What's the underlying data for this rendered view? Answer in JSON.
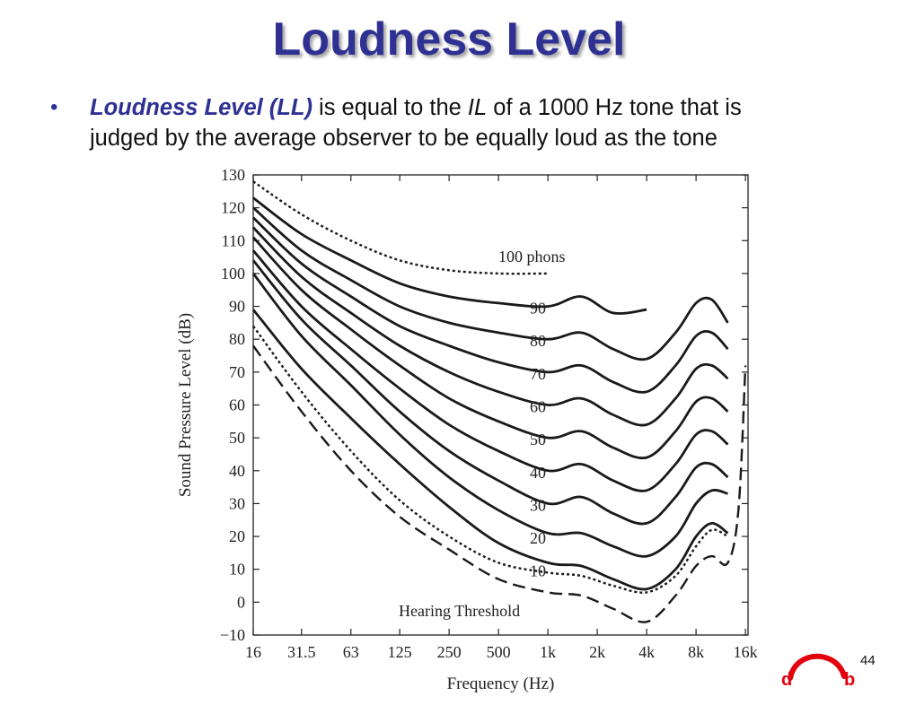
{
  "slide": {
    "title": "Loudness Level",
    "bullet": {
      "term": "Loudness Level (LL)",
      "text1": " is equal to the ",
      "il": "IL",
      "text2": " of a 1000 Hz tone that is",
      "line2": "judged by the average observer to be equally loud as the tone"
    },
    "page_number": "44",
    "logo_letters": [
      "d",
      "b"
    ],
    "colors": {
      "title": "#2e3192",
      "logo": "#e3000f"
    }
  },
  "chart_data": {
    "type": "line",
    "title": "",
    "xlabel": "Frequency (Hz)",
    "ylabel": "Sound Pressure Level (dB)",
    "xscale": "log",
    "xlim": [
      16,
      20000
    ],
    "ylim": [
      -10,
      130
    ],
    "x_ticks": [
      16,
      31.5,
      63,
      125,
      250,
      500,
      1000,
      2000,
      4000,
      8000,
      16000
    ],
    "x_tick_labels": [
      "16",
      "31.5",
      "63",
      "125",
      "250",
      "500",
      "1k",
      "2k",
      "4k",
      "8k",
      "16k"
    ],
    "y_ticks": [
      -10,
      0,
      10,
      20,
      30,
      40,
      50,
      60,
      70,
      80,
      90,
      100,
      110,
      120,
      130
    ],
    "y_tick_labels": [
      "−10",
      "0",
      "10",
      "20",
      "30",
      "40",
      "50",
      "60",
      "70",
      "80",
      "90",
      "100",
      "110",
      "120",
      "130"
    ],
    "grid": false,
    "series": [
      {
        "name": "100 phons",
        "label": "100 phons",
        "style": "dotted",
        "x": [
          16,
          31.5,
          63,
          125,
          250,
          500,
          1000
        ],
        "y": [
          128,
          118,
          110,
          104,
          101,
          100,
          100
        ]
      },
      {
        "name": "90",
        "label": "90",
        "style": "solid",
        "x": [
          16,
          31.5,
          63,
          125,
          250,
          500,
          1000,
          1600,
          2500,
          4000
        ],
        "y": [
          123,
          112,
          104,
          97,
          93,
          91,
          90,
          93,
          88,
          89
        ]
      },
      {
        "name": "80",
        "label": "80",
        "style": "solid",
        "x": [
          16,
          31.5,
          63,
          125,
          250,
          500,
          1000,
          1600,
          2500,
          4000,
          6000,
          8000,
          10000,
          12500
        ],
        "y": [
          120,
          107,
          98,
          90,
          85,
          82,
          80,
          82,
          77,
          74,
          82,
          91,
          92,
          85
        ]
      },
      {
        "name": "70",
        "label": "70",
        "style": "solid",
        "x": [
          16,
          31.5,
          63,
          125,
          250,
          500,
          1000,
          1600,
          2500,
          4000,
          6000,
          8000,
          10000,
          12500
        ],
        "y": [
          117,
          103,
          93,
          84,
          78,
          73,
          70,
          72,
          67,
          64,
          72,
          81,
          82,
          77
        ]
      },
      {
        "name": "60",
        "label": "60",
        "style": "solid",
        "x": [
          16,
          31.5,
          63,
          125,
          250,
          500,
          1000,
          1600,
          2500,
          4000,
          6000,
          8000,
          10000,
          12500
        ],
        "y": [
          114,
          99,
          88,
          78,
          70,
          64,
          60,
          62,
          57,
          54,
          62,
          71,
          72,
          68
        ]
      },
      {
        "name": "50",
        "label": "50",
        "style": "solid",
        "x": [
          16,
          31.5,
          63,
          125,
          250,
          500,
          1000,
          1600,
          2500,
          4000,
          6000,
          8000,
          10000,
          12500
        ],
        "y": [
          111,
          95,
          83,
          72,
          62,
          55,
          50,
          52,
          47,
          44,
          52,
          61,
          62,
          58
        ]
      },
      {
        "name": "40",
        "label": "40",
        "style": "solid",
        "x": [
          16,
          31.5,
          63,
          125,
          250,
          500,
          1000,
          1600,
          2500,
          4000,
          6000,
          8000,
          10000,
          12500
        ],
        "y": [
          107,
          90,
          77,
          65,
          54,
          46,
          40,
          42,
          37,
          34,
          42,
          51,
          52,
          48
        ]
      },
      {
        "name": "30",
        "label": "30",
        "style": "solid",
        "x": [
          16,
          31.5,
          63,
          125,
          250,
          500,
          1000,
          1600,
          2500,
          4000,
          6000,
          8000,
          10000,
          12500
        ],
        "y": [
          104,
          86,
          72,
          58,
          46,
          37,
          30,
          32,
          27,
          24,
          32,
          41,
          42,
          38
        ]
      },
      {
        "name": "20",
        "label": "20",
        "style": "solid",
        "x": [
          16,
          31.5,
          63,
          125,
          250,
          500,
          1000,
          1600,
          2500,
          4000,
          6000,
          8000,
          10000,
          12500
        ],
        "y": [
          100,
          81,
          66,
          51,
          38,
          28,
          21,
          21,
          17,
          14,
          20,
          30,
          34,
          33
        ]
      },
      {
        "name": "10",
        "label": "10",
        "style": "solid",
        "x": [
          16,
          31.5,
          63,
          125,
          250,
          500,
          1000,
          1600,
          2500,
          4000,
          6000,
          8000,
          10000,
          12500
        ],
        "y": [
          89,
          71,
          56,
          42,
          29,
          18,
          12,
          11,
          7,
          4,
          10,
          20,
          24,
          21
        ]
      },
      {
        "name": "dotted-10",
        "label": "",
        "style": "dotted",
        "x": [
          16,
          31.5,
          63,
          125,
          250,
          500,
          1000,
          1600,
          2500,
          4000,
          6000,
          8000,
          10000,
          12500
        ],
        "y": [
          84,
          64,
          46,
          31,
          20,
          12,
          9,
          8,
          5,
          3,
          8,
          17,
          22,
          20
        ]
      },
      {
        "name": "Hearing Threshold",
        "label": "Hearing Threshold",
        "style": "dashed",
        "x": [
          16,
          31.5,
          63,
          125,
          250,
          500,
          1000,
          1600,
          2500,
          4000,
          6000,
          8000,
          10000,
          12500,
          14500,
          16000
        ],
        "y": [
          78,
          58,
          40,
          26,
          16,
          7,
          3,
          2,
          -2,
          -6,
          2,
          11,
          14,
          12,
          28,
          72
        ]
      }
    ]
  }
}
